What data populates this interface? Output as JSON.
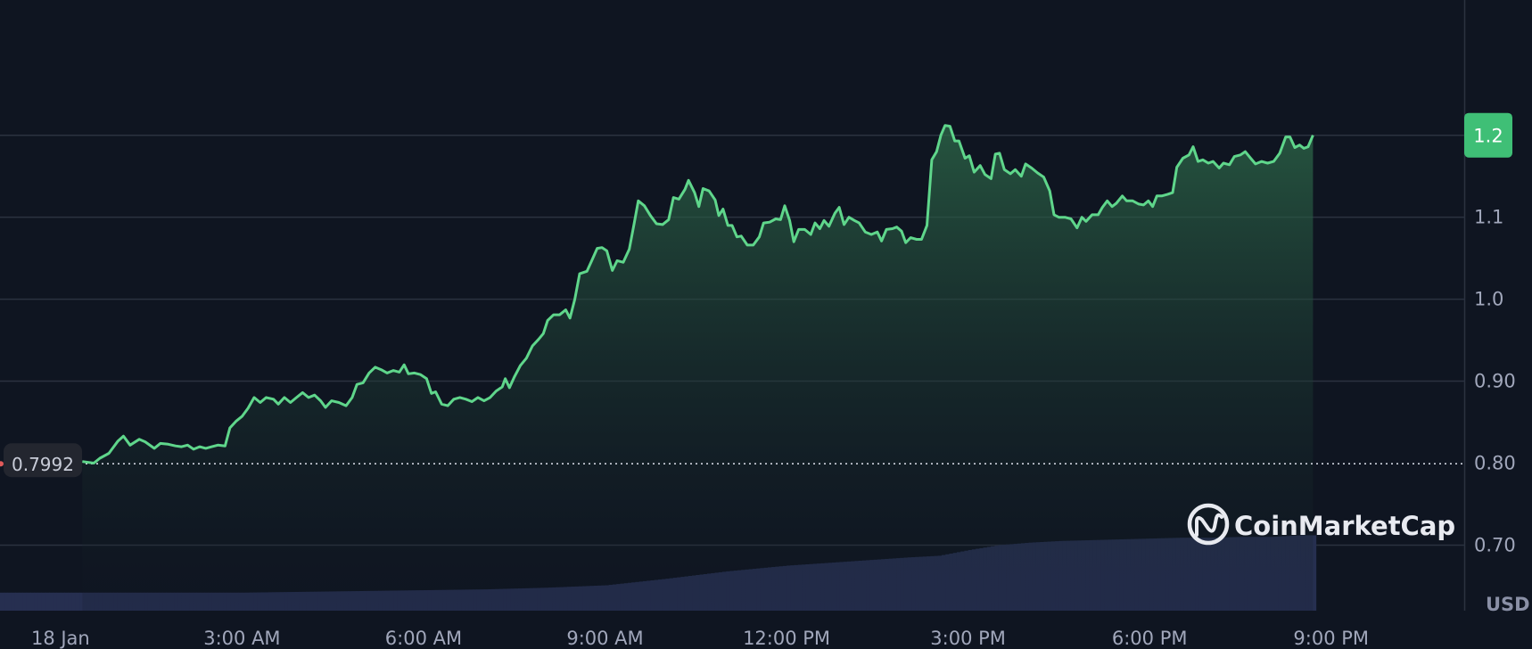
{
  "chart_data": {
    "type": "area",
    "title": "",
    "xlabel": "",
    "ylabel": "",
    "currency": "USD",
    "watermark": "CoinMarketCap",
    "open_price_label": "0.7992",
    "open_price": 0.7992,
    "current_price_label": "1.2",
    "ylim": [
      0.62,
      1.365
    ],
    "y_ticks": [
      {
        "value": 0.7,
        "label": "0.70"
      },
      {
        "value": 0.8,
        "label": "0.80"
      },
      {
        "value": 0.9,
        "label": "0.90"
      },
      {
        "value": 1.0,
        "label": "1.0"
      },
      {
        "value": 1.1,
        "label": "1.1"
      },
      {
        "value": 1.2,
        "label": "1.2"
      }
    ],
    "x_range_hours": [
      0,
      24.2
    ],
    "x_ticks": [
      {
        "hour": 1,
        "label": "18 Jan"
      },
      {
        "hour": 4,
        "label": "3:00 AM"
      },
      {
        "hour": 7,
        "label": "6:00 AM"
      },
      {
        "hour": 10,
        "label": "9:00 AM"
      },
      {
        "hour": 13,
        "label": "12:00 PM"
      },
      {
        "hour": 16,
        "label": "3:00 PM"
      },
      {
        "hour": 19,
        "label": "6:00 PM"
      },
      {
        "hour": 22,
        "label": "9:00 PM"
      }
    ],
    "colors": {
      "line": "#5fd68b",
      "fill_top": "#2e6b4a",
      "fill_bottom": "#0f1521",
      "volume": "#262f50",
      "grid": "#2b3240",
      "axis_text": "#a1a7bb",
      "badge_bg": "#3fbf76",
      "open_badge_bg": "#23262f"
    },
    "series": [
      {
        "points": [
          [
            1.36,
            0.802
          ],
          [
            1.55,
            0.8
          ],
          [
            1.65,
            0.806
          ],
          [
            1.8,
            0.812
          ],
          [
            1.95,
            0.827
          ],
          [
            2.04,
            0.833
          ],
          [
            2.15,
            0.822
          ],
          [
            2.3,
            0.829
          ],
          [
            2.4,
            0.826
          ],
          [
            2.55,
            0.818
          ],
          [
            2.65,
            0.824
          ],
          [
            2.78,
            0.823
          ],
          [
            2.9,
            0.821
          ],
          [
            3.0,
            0.82
          ],
          [
            3.1,
            0.822
          ],
          [
            3.2,
            0.817
          ],
          [
            3.3,
            0.82
          ],
          [
            3.4,
            0.818
          ],
          [
            3.5,
            0.82
          ],
          [
            3.6,
            0.822
          ],
          [
            3.72,
            0.821
          ],
          [
            3.8,
            0.843
          ],
          [
            3.9,
            0.851
          ],
          [
            4.0,
            0.857
          ],
          [
            4.1,
            0.867
          ],
          [
            4.2,
            0.88
          ],
          [
            4.3,
            0.874
          ],
          [
            4.4,
            0.88
          ],
          [
            4.52,
            0.878
          ],
          [
            4.6,
            0.872
          ],
          [
            4.7,
            0.88
          ],
          [
            4.8,
            0.874
          ],
          [
            4.9,
            0.88
          ],
          [
            5.0,
            0.886
          ],
          [
            5.1,
            0.88
          ],
          [
            5.2,
            0.883
          ],
          [
            5.3,
            0.876
          ],
          [
            5.38,
            0.868
          ],
          [
            5.48,
            0.876
          ],
          [
            5.6,
            0.874
          ],
          [
            5.72,
            0.87
          ],
          [
            5.82,
            0.88
          ],
          [
            5.9,
            0.896
          ],
          [
            6.0,
            0.898
          ],
          [
            6.1,
            0.91
          ],
          [
            6.2,
            0.917
          ],
          [
            6.3,
            0.914
          ],
          [
            6.4,
            0.91
          ],
          [
            6.5,
            0.913
          ],
          [
            6.6,
            0.911
          ],
          [
            6.68,
            0.92
          ],
          [
            6.75,
            0.909
          ],
          [
            6.85,
            0.91
          ],
          [
            6.95,
            0.908
          ],
          [
            7.05,
            0.903
          ],
          [
            7.13,
            0.885
          ],
          [
            7.2,
            0.887
          ],
          [
            7.3,
            0.872
          ],
          [
            7.4,
            0.87
          ],
          [
            7.5,
            0.878
          ],
          [
            7.6,
            0.88
          ],
          [
            7.7,
            0.878
          ],
          [
            7.8,
            0.875
          ],
          [
            7.9,
            0.88
          ],
          [
            8.0,
            0.876
          ],
          [
            8.1,
            0.88
          ],
          [
            8.2,
            0.888
          ],
          [
            8.3,
            0.893
          ],
          [
            8.35,
            0.903
          ],
          [
            8.42,
            0.892
          ],
          [
            8.5,
            0.905
          ],
          [
            8.6,
            0.919
          ],
          [
            8.7,
            0.928
          ],
          [
            8.8,
            0.943
          ],
          [
            8.9,
            0.951
          ],
          [
            8.98,
            0.958
          ],
          [
            9.05,
            0.974
          ],
          [
            9.15,
            0.981
          ],
          [
            9.25,
            0.981
          ],
          [
            9.35,
            0.987
          ],
          [
            9.42,
            0.977
          ],
          [
            9.5,
            1.0
          ],
          [
            9.58,
            1.031
          ],
          [
            9.7,
            1.034
          ],
          [
            9.78,
            1.047
          ],
          [
            9.87,
            1.062
          ],
          [
            9.95,
            1.063
          ],
          [
            10.03,
            1.059
          ],
          [
            10.12,
            1.035
          ],
          [
            10.2,
            1.047
          ],
          [
            10.3,
            1.045
          ],
          [
            10.4,
            1.061
          ],
          [
            10.48,
            1.092
          ],
          [
            10.55,
            1.12
          ],
          [
            10.65,
            1.114
          ],
          [
            10.75,
            1.102
          ],
          [
            10.85,
            1.092
          ],
          [
            10.95,
            1.091
          ],
          [
            11.05,
            1.097
          ],
          [
            11.13,
            1.124
          ],
          [
            11.22,
            1.122
          ],
          [
            11.32,
            1.134
          ],
          [
            11.38,
            1.145
          ],
          [
            11.48,
            1.13
          ],
          [
            11.55,
            1.113
          ],
          [
            11.62,
            1.135
          ],
          [
            11.72,
            1.132
          ],
          [
            11.82,
            1.121
          ],
          [
            11.88,
            1.102
          ],
          [
            11.95,
            1.11
          ],
          [
            12.03,
            1.09
          ],
          [
            12.1,
            1.09
          ],
          [
            12.18,
            1.076
          ],
          [
            12.25,
            1.077
          ],
          [
            12.35,
            1.066
          ],
          [
            12.45,
            1.066
          ],
          [
            12.55,
            1.076
          ],
          [
            12.62,
            1.093
          ],
          [
            12.72,
            1.094
          ],
          [
            12.82,
            1.098
          ],
          [
            12.9,
            1.097
          ],
          [
            12.97,
            1.114
          ],
          [
            13.05,
            1.096
          ],
          [
            13.12,
            1.07
          ],
          [
            13.2,
            1.085
          ],
          [
            13.3,
            1.085
          ],
          [
            13.4,
            1.079
          ],
          [
            13.47,
            1.093
          ],
          [
            13.55,
            1.086
          ],
          [
            13.62,
            1.096
          ],
          [
            13.7,
            1.089
          ],
          [
            13.8,
            1.105
          ],
          [
            13.87,
            1.112
          ],
          [
            13.95,
            1.091
          ],
          [
            14.03,
            1.1
          ],
          [
            14.12,
            1.096
          ],
          [
            14.2,
            1.093
          ],
          [
            14.3,
            1.082
          ],
          [
            14.4,
            1.079
          ],
          [
            14.5,
            1.082
          ],
          [
            14.57,
            1.071
          ],
          [
            14.65,
            1.085
          ],
          [
            14.75,
            1.086
          ],
          [
            14.82,
            1.088
          ],
          [
            14.9,
            1.083
          ],
          [
            14.97,
            1.069
          ],
          [
            15.05,
            1.075
          ],
          [
            15.15,
            1.073
          ],
          [
            15.23,
            1.073
          ],
          [
            15.32,
            1.09
          ],
          [
            15.4,
            1.17
          ],
          [
            15.48,
            1.18
          ],
          [
            15.55,
            1.2
          ],
          [
            15.62,
            1.212
          ],
          [
            15.7,
            1.211
          ],
          [
            15.78,
            1.193
          ],
          [
            15.85,
            1.193
          ],
          [
            15.95,
            1.172
          ],
          [
            16.02,
            1.175
          ],
          [
            16.1,
            1.155
          ],
          [
            16.2,
            1.163
          ],
          [
            16.28,
            1.152
          ],
          [
            16.38,
            1.147
          ],
          [
            16.45,
            1.177
          ],
          [
            16.52,
            1.178
          ],
          [
            16.6,
            1.158
          ],
          [
            16.7,
            1.153
          ],
          [
            16.78,
            1.158
          ],
          [
            16.88,
            1.15
          ],
          [
            16.95,
            1.165
          ],
          [
            17.05,
            1.16
          ],
          [
            17.15,
            1.154
          ],
          [
            17.25,
            1.149
          ],
          [
            17.35,
            1.132
          ],
          [
            17.42,
            1.103
          ],
          [
            17.5,
            1.1
          ],
          [
            17.6,
            1.1
          ],
          [
            17.7,
            1.098
          ],
          [
            17.8,
            1.087
          ],
          [
            17.88,
            1.1
          ],
          [
            17.95,
            1.095
          ],
          [
            18.05,
            1.103
          ],
          [
            18.15,
            1.103
          ],
          [
            18.22,
            1.112
          ],
          [
            18.3,
            1.12
          ],
          [
            18.38,
            1.113
          ],
          [
            18.45,
            1.117
          ],
          [
            18.55,
            1.126
          ],
          [
            18.62,
            1.12
          ],
          [
            18.72,
            1.12
          ],
          [
            18.82,
            1.116
          ],
          [
            18.9,
            1.115
          ],
          [
            18.98,
            1.12
          ],
          [
            19.05,
            1.113
          ],
          [
            19.12,
            1.126
          ],
          [
            19.2,
            1.126
          ],
          [
            19.3,
            1.128
          ],
          [
            19.38,
            1.13
          ],
          [
            19.45,
            1.161
          ],
          [
            19.55,
            1.172
          ],
          [
            19.65,
            1.176
          ],
          [
            19.72,
            1.186
          ],
          [
            19.8,
            1.168
          ],
          [
            19.88,
            1.17
          ],
          [
            19.97,
            1.166
          ],
          [
            20.05,
            1.168
          ],
          [
            20.15,
            1.16
          ],
          [
            20.22,
            1.166
          ],
          [
            20.32,
            1.164
          ],
          [
            20.4,
            1.174
          ],
          [
            20.5,
            1.176
          ],
          [
            20.58,
            1.18
          ],
          [
            20.67,
            1.172
          ],
          [
            20.75,
            1.165
          ],
          [
            20.85,
            1.168
          ],
          [
            20.95,
            1.166
          ],
          [
            21.05,
            1.168
          ],
          [
            21.15,
            1.178
          ],
          [
            21.25,
            1.198
          ],
          [
            21.32,
            1.198
          ],
          [
            21.4,
            1.185
          ],
          [
            21.48,
            1.188
          ],
          [
            21.55,
            1.184
          ],
          [
            21.62,
            1.186
          ],
          [
            21.7,
            1.2
          ]
        ]
      }
    ],
    "volume": [
      [
        0.0,
        0.022
      ],
      [
        1.0,
        0.022
      ],
      [
        2.0,
        0.022
      ],
      [
        3.0,
        0.022
      ],
      [
        4.0,
        0.022
      ],
      [
        5.0,
        0.023
      ],
      [
        6.0,
        0.024
      ],
      [
        7.0,
        0.025
      ],
      [
        8.0,
        0.026
      ],
      [
        9.0,
        0.028
      ],
      [
        10.0,
        0.031
      ],
      [
        11.0,
        0.039
      ],
      [
        12.0,
        0.048
      ],
      [
        13.0,
        0.055
      ],
      [
        14.0,
        0.06
      ],
      [
        15.0,
        0.065
      ],
      [
        15.5,
        0.067
      ],
      [
        16.0,
        0.074
      ],
      [
        16.5,
        0.08
      ],
      [
        17.0,
        0.083
      ],
      [
        17.5,
        0.085
      ],
      [
        18.0,
        0.086
      ],
      [
        18.5,
        0.087
      ],
      [
        19.0,
        0.088
      ],
      [
        19.5,
        0.089
      ],
      [
        20.0,
        0.089
      ],
      [
        20.5,
        0.09
      ],
      [
        21.0,
        0.09
      ],
      [
        21.5,
        0.092
      ],
      [
        21.73,
        0.092
      ]
    ]
  }
}
